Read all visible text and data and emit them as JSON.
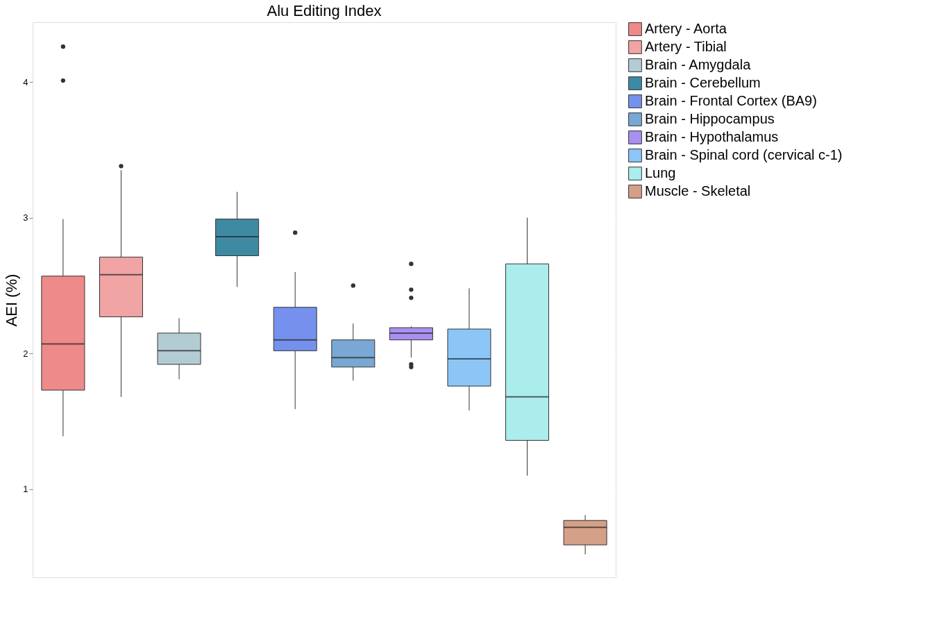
{
  "chart_data": {
    "type": "box",
    "title": "Alu Editing Index",
    "ylabel": "AEI (%)",
    "categories": [
      null,
      null,
      null,
      null,
      null,
      null,
      null,
      null,
      null,
      null
    ],
    "series": [
      {
        "name": "Artery - Aorta",
        "color": "#ee8a8a",
        "boxes": [
          {
            "low": 1.39,
            "q1": 1.73,
            "median": 2.07,
            "q3": 2.57,
            "high": 2.99,
            "outliers": [
              4.26,
              4.01
            ]
          },
          null,
          null,
          null,
          null,
          null,
          null,
          null,
          null,
          null
        ]
      },
      {
        "name": "Artery - Tibial",
        "color": "#f0a4a4",
        "boxes": [
          null,
          {
            "low": 1.68,
            "q1": 2.27,
            "median": 2.58,
            "q3": 2.71,
            "high": 3.35,
            "outliers": [
              3.38
            ]
          },
          null,
          null,
          null,
          null,
          null,
          null,
          null,
          null
        ]
      },
      {
        "name": "Brain - Amygdala",
        "color": "#b3ccd4",
        "boxes": [
          null,
          null,
          {
            "low": 1.81,
            "q1": 1.92,
            "median": 2.02,
            "q3": 2.15,
            "high": 2.26
          },
          null,
          null,
          null,
          null,
          null,
          null,
          null
        ]
      },
      {
        "name": "Brain - Cerebellum",
        "color": "#3e8aa3",
        "boxes": [
          null,
          null,
          null,
          {
            "low": 2.49,
            "q1": 2.72,
            "median": 2.86,
            "q3": 2.99,
            "high": 3.19
          },
          null,
          null,
          null,
          null,
          null,
          null
        ]
      },
      {
        "name": "Brain - Frontal Cortex (BA9)",
        "color": "#7591ed",
        "boxes": [
          null,
          null,
          null,
          null,
          {
            "low": 1.59,
            "q1": 2.02,
            "median": 2.1,
            "q3": 2.34,
            "high": 2.6,
            "outliers": [
              2.89
            ]
          },
          null,
          null,
          null,
          null,
          null
        ]
      },
      {
        "name": "Brain - Hippocampus",
        "color": "#79a8d4",
        "boxes": [
          null,
          null,
          null,
          null,
          null,
          {
            "low": 1.8,
            "q1": 1.9,
            "median": 1.97,
            "q3": 2.1,
            "high": 2.22,
            "outliers": [
              2.5
            ]
          },
          null,
          null,
          null,
          null
        ]
      },
      {
        "name": "Brain - Hypothalamus",
        "color": "#a98ff0",
        "boxes": [
          null,
          null,
          null,
          null,
          null,
          null,
          {
            "low": 1.97,
            "q1": 2.1,
            "median": 2.15,
            "q3": 2.19,
            "high": 2.2,
            "outliers": [
              2.66,
              2.47,
              2.41,
              1.92,
              1.9
            ]
          },
          null,
          null,
          null
        ]
      },
      {
        "name": "Brain - Spinal cord (cervical c-1)",
        "color": "#8bc6f7",
        "boxes": [
          null,
          null,
          null,
          null,
          null,
          null,
          null,
          {
            "low": 1.58,
            "q1": 1.76,
            "median": 1.96,
            "q3": 2.18,
            "high": 2.48
          },
          null,
          null
        ]
      },
      {
        "name": "Lung",
        "color": "#abeced",
        "boxes": [
          null,
          null,
          null,
          null,
          null,
          null,
          null,
          null,
          {
            "low": 1.1,
            "q1": 1.36,
            "median": 1.68,
            "q3": 2.66,
            "high": 3.0
          },
          null
        ]
      },
      {
        "name": "Muscle - Skeletal",
        "color": "#d4a088",
        "boxes": [
          null,
          null,
          null,
          null,
          null,
          null,
          null,
          null,
          null,
          {
            "low": 0.52,
            "q1": 0.59,
            "median": 0.72,
            "q3": 0.77,
            "high": 0.81
          }
        ]
      }
    ],
    "ylim": [
      0.35,
      4.44
    ],
    "yticks": [
      1,
      2,
      3,
      4
    ],
    "grid": true,
    "legend": "top right",
    "tick_labels": "y"
  }
}
